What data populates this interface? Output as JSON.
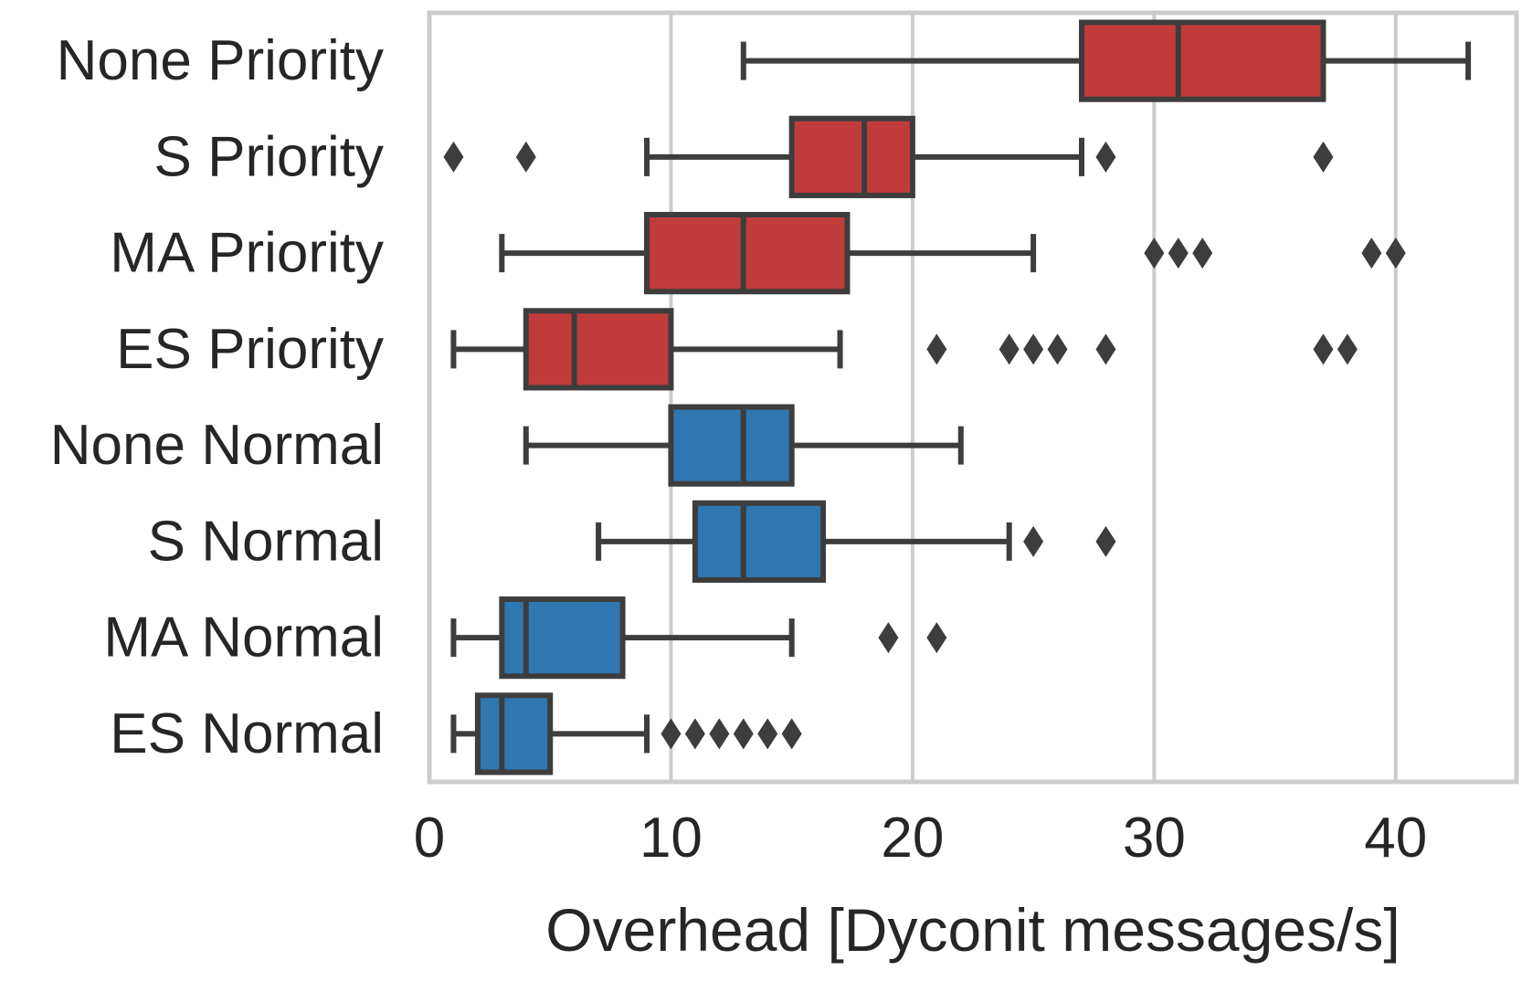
{
  "chart_data": {
    "type": "box",
    "orientation": "horizontal",
    "title": "",
    "xlabel": "Overhead [Dyconit messages/s]",
    "ylabel": "",
    "xlim": [
      0,
      45
    ],
    "xticks": [
      "0",
      "10",
      "20",
      "30",
      "40"
    ],
    "xtick_values": [
      0,
      10,
      20,
      30,
      40
    ],
    "grid": "vertical",
    "colors": {
      "priority": "#c23b3b",
      "normal": "#2f77b1",
      "line": "#3d3d3d",
      "grid": "#cccccc",
      "frame": "#cccccc"
    },
    "categories": [
      "None Priority",
      "S Priority",
      "MA Priority",
      "ES Priority",
      "None Normal",
      "S Normal",
      "MA Normal",
      "ES Normal"
    ],
    "boxes": [
      {
        "label": "None Priority",
        "group": "priority",
        "whisker_low": 13,
        "q1": 27,
        "median": 31,
        "q3": 37,
        "whisker_high": 43,
        "outliers": []
      },
      {
        "label": "S Priority",
        "group": "priority",
        "whisker_low": 9,
        "q1": 15,
        "median": 18,
        "q3": 20,
        "whisker_high": 27,
        "outliers": [
          1,
          4,
          28,
          37
        ]
      },
      {
        "label": "MA Priority",
        "group": "priority",
        "whisker_low": 3,
        "q1": 9,
        "median": 13,
        "q3": 17.3,
        "whisker_high": 25,
        "outliers": [
          30,
          31,
          32,
          39,
          40
        ]
      },
      {
        "label": "ES Priority",
        "group": "priority",
        "whisker_low": 1,
        "q1": 4,
        "median": 6,
        "q3": 10,
        "whisker_high": 17,
        "outliers": [
          21,
          24,
          25,
          26,
          28,
          37,
          38
        ]
      },
      {
        "label": "None Normal",
        "group": "normal",
        "whisker_low": 4,
        "q1": 10,
        "median": 13,
        "q3": 15,
        "whisker_high": 22,
        "outliers": []
      },
      {
        "label": "S Normal",
        "group": "normal",
        "whisker_low": 7,
        "q1": 11,
        "median": 13,
        "q3": 16.3,
        "whisker_high": 24,
        "outliers": [
          25,
          28
        ]
      },
      {
        "label": "MA Normal",
        "group": "normal",
        "whisker_low": 1,
        "q1": 3,
        "median": 4,
        "q3": 8,
        "whisker_high": 15,
        "outliers": [
          19,
          21
        ]
      },
      {
        "label": "ES Normal",
        "group": "normal",
        "whisker_low": 1,
        "q1": 2,
        "median": 3,
        "q3": 5,
        "whisker_high": 9,
        "outliers": [
          10,
          11,
          12,
          13,
          14,
          15
        ]
      }
    ]
  }
}
